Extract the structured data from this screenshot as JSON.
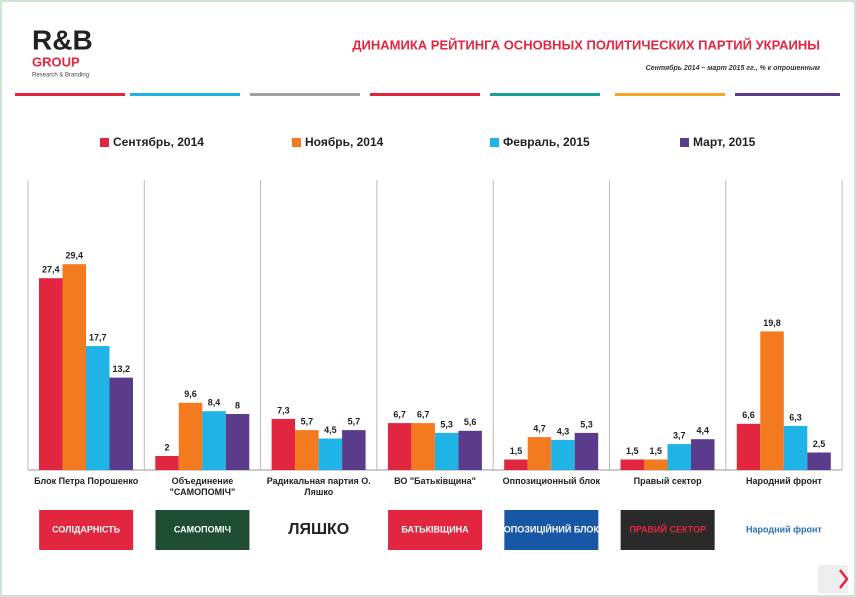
{
  "chart_data": {
    "type": "bar",
    "title": "ДИНАМИКА РЕЙТИНГА ОСНОВНЫХ ПОЛИТИЧЕСКИХ ПАРТИЙ УКРАИНЫ",
    "subtitle": "Сентябрь 2014 – март 2015 гг.,  % к опрошенным",
    "categories": [
      "Блок Петра Порошенко",
      "Объединение \"САМОПОМІЧ\"",
      "Радикальная партия О. Ляшко",
      "ВО \"Батьківщина\"",
      "Оппозиционный блок",
      "Правый сектор",
      "Народний фронт"
    ],
    "series": [
      {
        "name": "Сентябрь, 2014",
        "color": "#e3263f",
        "values": [
          27.4,
          2,
          7.3,
          6.7,
          1.5,
          1.5,
          6.6
        ],
        "value_labels": [
          "27,4",
          "2",
          "7,3",
          "6,7",
          "1,5",
          "1,5",
          "6,6"
        ]
      },
      {
        "name": "Ноябрь, 2014",
        "color": "#f47a20",
        "values": [
          29.4,
          9.6,
          5.7,
          6.7,
          4.7,
          1.5,
          19.8
        ],
        "value_labels": [
          "29,4",
          "9,6",
          "5,7",
          "6,7",
          "4,7",
          "1,5",
          "19,8"
        ]
      },
      {
        "name": "Февраль, 2015",
        "color": "#1fb3e6",
        "values": [
          17.7,
          8.4,
          4.5,
          5.3,
          4.3,
          3.7,
          6.3
        ],
        "value_labels": [
          "17,7",
          "8,4",
          "4,5",
          "5,3",
          "4,3",
          "3,7",
          "6,3"
        ]
      },
      {
        "name": "Март, 2015",
        "color": "#5b3b8c",
        "values": [
          13.2,
          8,
          5.7,
          5.6,
          5.3,
          4.4,
          2.5
        ],
        "value_labels": [
          "13,2",
          "8",
          "5,7",
          "5,6",
          "5,3",
          "4,4",
          "2,5"
        ]
      }
    ],
    "legend": "top"
  },
  "brand": {
    "name": "R&B",
    "group": "GROUP",
    "tagline": "Research & Branding"
  },
  "party_logos": [
    "СОЛІДАРНІСТЬ",
    "САМОПОМІЧ",
    "ЛЯШКО",
    "БАТЬКІВЩИНА",
    "ОПОЗИЦІЙНИЙ БЛОК",
    "ПРАВИЙ СЕКТОР",
    "Народний фронт"
  ]
}
